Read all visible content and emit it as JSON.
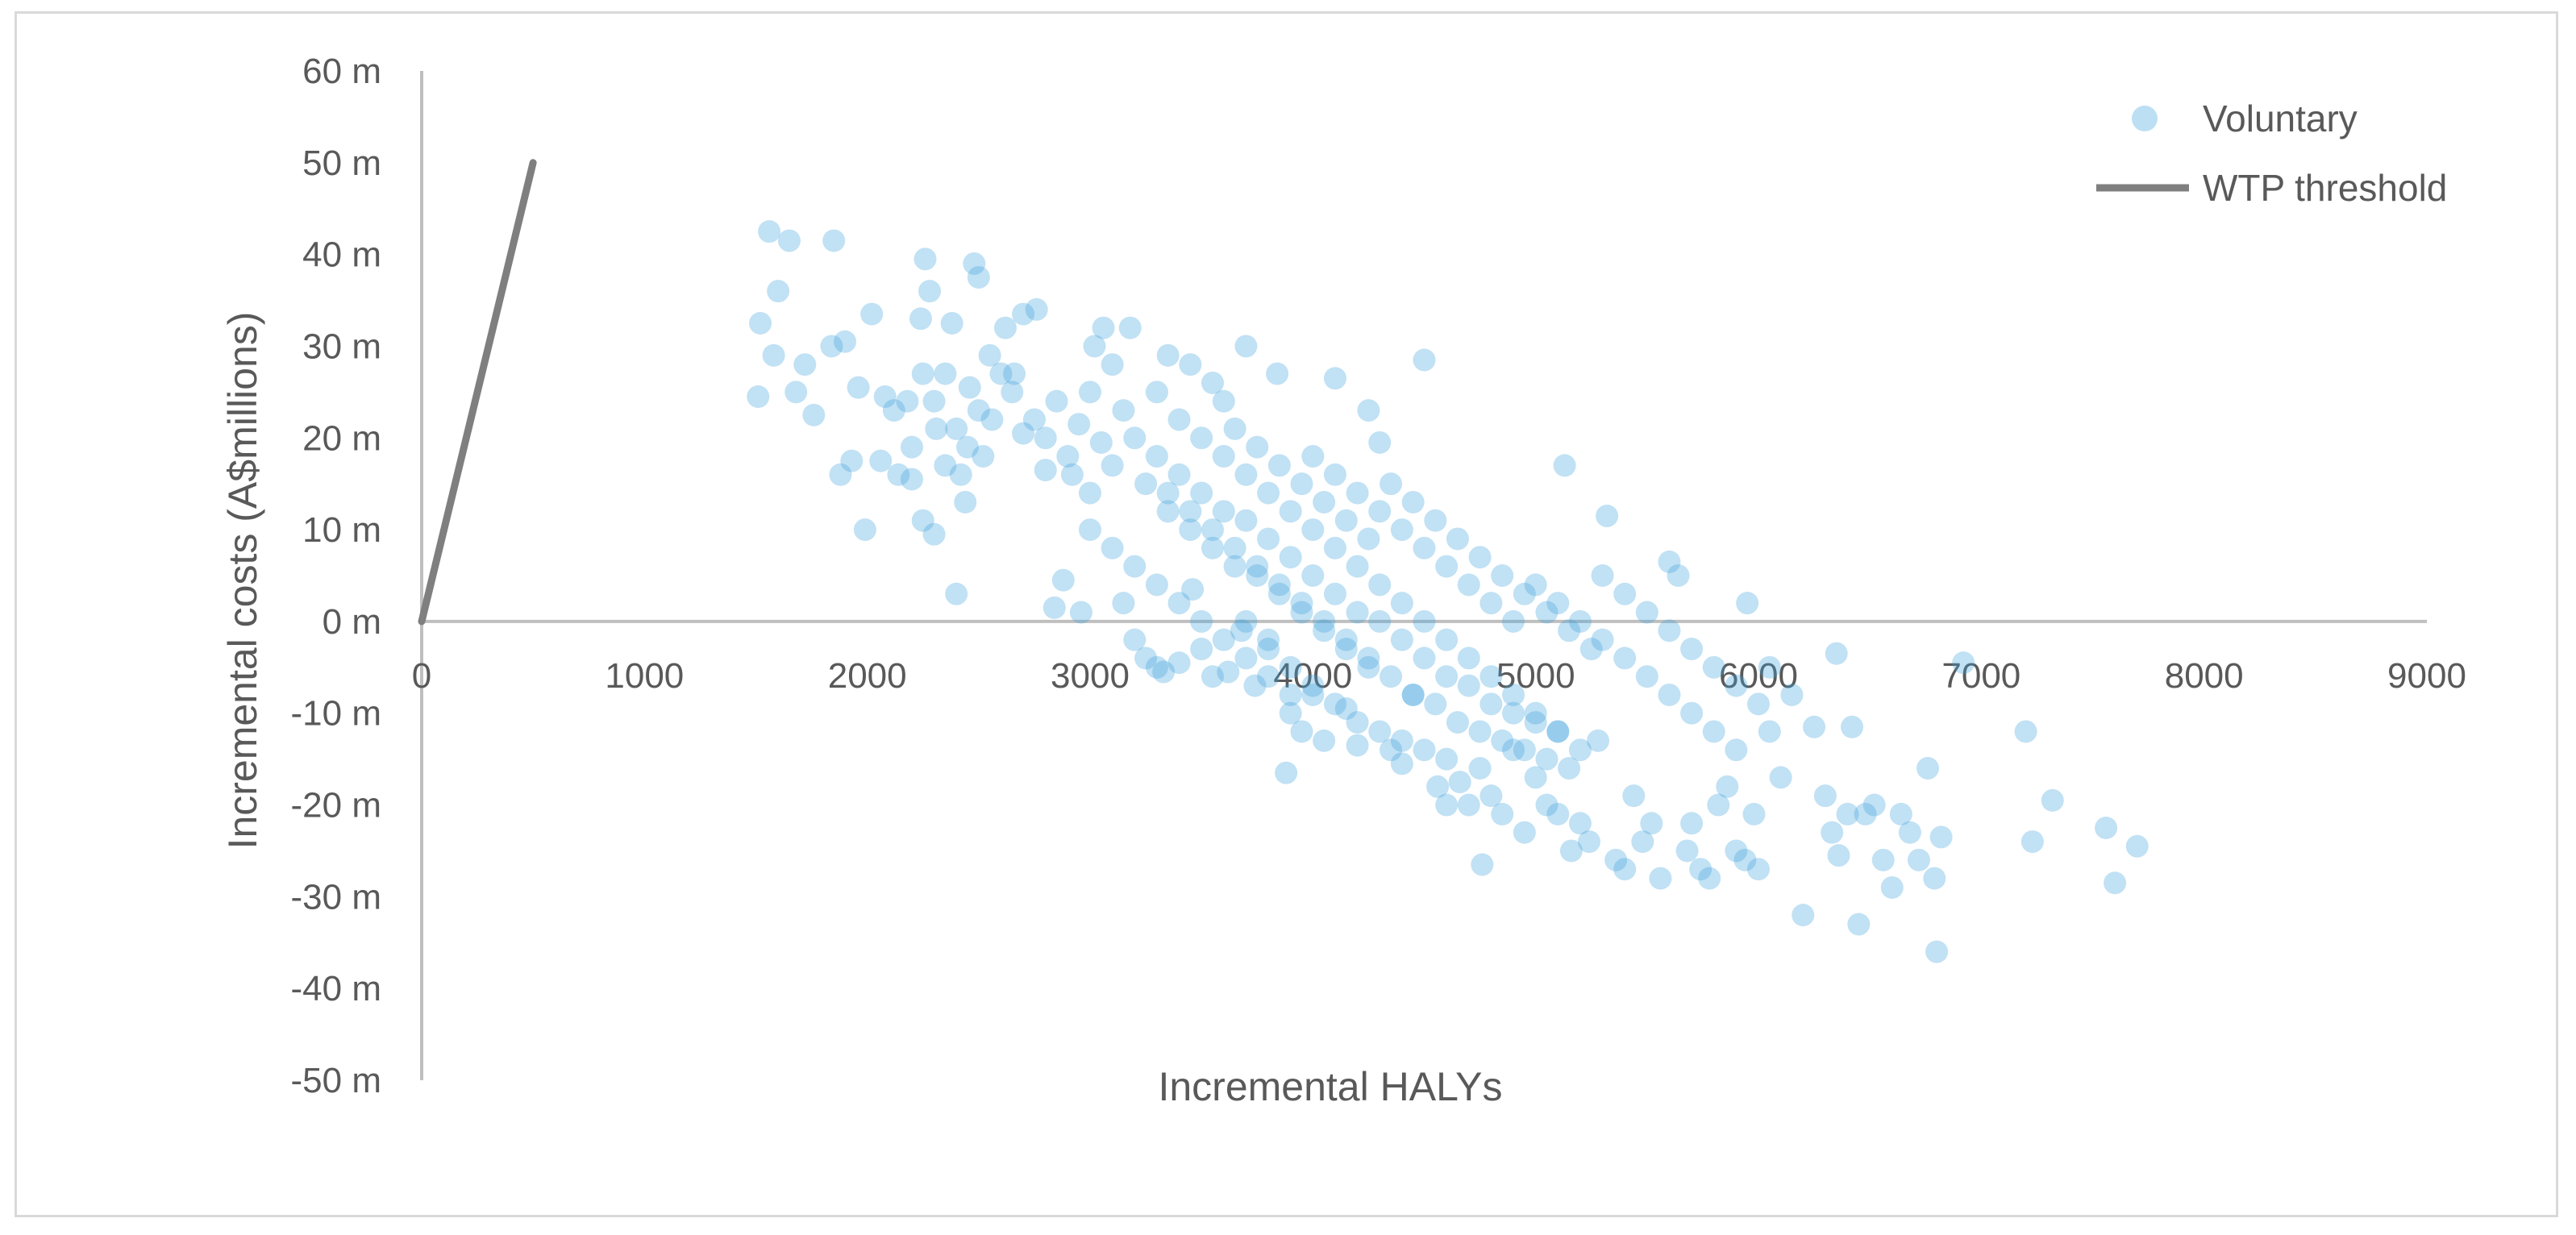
{
  "chart_data": {
    "type": "scatter",
    "title": "",
    "xlabel": "Incremental HALYs",
    "ylabel": "Incremental costs (A$millions)",
    "xlim": [
      0,
      9000
    ],
    "ylim": [
      -50,
      60
    ],
    "x_ticks": [
      "0",
      "1000",
      "2000",
      "3000",
      "4000",
      "5000",
      "6000",
      "7000",
      "8000",
      "9000"
    ],
    "y_ticks": [
      "60 m",
      "50 m",
      "40 m",
      "30 m",
      "20 m",
      "10 m",
      "0 m",
      "-10 m",
      "-20 m",
      "-30 m",
      "-40 m",
      "-50 m"
    ],
    "grid": false,
    "legend_position": "top-right",
    "series": [
      {
        "name": "Voluntary",
        "kind": "scatter",
        "color": "#3fa2dc",
        "points": [
          [
            1510,
            24.5
          ],
          [
            1520,
            32.5
          ],
          [
            1560,
            42.5
          ],
          [
            1580,
            29
          ],
          [
            1600,
            36
          ],
          [
            1650,
            41.5
          ],
          [
            1680,
            25
          ],
          [
            1720,
            28
          ],
          [
            1760,
            22.5
          ],
          [
            1840,
            30
          ],
          [
            1850,
            41.5
          ],
          [
            1880,
            16
          ],
          [
            1900,
            30.5
          ],
          [
            1930,
            17.5
          ],
          [
            1960,
            25.5
          ],
          [
            1990,
            10
          ],
          [
            2020,
            33.5
          ],
          [
            2060,
            17.5
          ],
          [
            2080,
            24.5
          ],
          [
            2120,
            23
          ],
          [
            2140,
            16
          ],
          [
            2180,
            24
          ],
          [
            2200,
            15.5
          ],
          [
            2240,
            33
          ],
          [
            2250,
            11
          ],
          [
            2260,
            39.5
          ],
          [
            2280,
            36
          ],
          [
            2300,
            9.5
          ],
          [
            2310,
            21
          ],
          [
            2350,
            27
          ],
          [
            2380,
            32.5
          ],
          [
            2400,
            3
          ],
          [
            2420,
            16
          ],
          [
            2440,
            13
          ],
          [
            2460,
            25.5
          ],
          [
            2480,
            39
          ],
          [
            2500,
            37.5
          ],
          [
            2520,
            18
          ],
          [
            2560,
            22
          ],
          [
            2620,
            32
          ],
          [
            2660,
            27
          ],
          [
            2700,
            33.5
          ],
          [
            2760,
            34
          ],
          [
            2800,
            20
          ],
          [
            2840,
            1.5
          ],
          [
            2880,
            4.5
          ],
          [
            2920,
            16
          ],
          [
            2960,
            1
          ],
          [
            3000,
            25
          ],
          [
            3020,
            30
          ],
          [
            3060,
            32
          ],
          [
            3100,
            28
          ],
          [
            3150,
            2
          ],
          [
            3180,
            32
          ],
          [
            3200,
            -2
          ],
          [
            3250,
            -4
          ],
          [
            3300,
            -5
          ],
          [
            3330,
            -5.5
          ],
          [
            3350,
            29
          ],
          [
            3400,
            -4.5
          ],
          [
            3460,
            3.5
          ],
          [
            3500,
            -3
          ],
          [
            3550,
            -6
          ],
          [
            3620,
            -5.5
          ],
          [
            3680,
            -1
          ],
          [
            3700,
            30
          ],
          [
            3740,
            -7
          ],
          [
            3800,
            -2
          ],
          [
            3840,
            27
          ],
          [
            3880,
            -16.5
          ],
          [
            3900,
            -10
          ],
          [
            3950,
            -12
          ],
          [
            4000,
            -8
          ],
          [
            4050,
            -13
          ],
          [
            4100,
            26.5
          ],
          [
            4150,
            -9.5
          ],
          [
            4200,
            -13.5
          ],
          [
            4250,
            23
          ],
          [
            4300,
            19.5
          ],
          [
            4350,
            -14
          ],
          [
            4400,
            -15.5
          ],
          [
            4450,
            -8
          ],
          [
            4500,
            28.5
          ],
          [
            4560,
            -18
          ],
          [
            4600,
            -20
          ],
          [
            4660,
            -17.5
          ],
          [
            4700,
            -20
          ],
          [
            4750,
            -16
          ],
          [
            4760,
            -26.5
          ],
          [
            4800,
            -19
          ],
          [
            4850,
            -21
          ],
          [
            4900,
            -14
          ],
          [
            4950,
            -23
          ],
          [
            5000,
            -17
          ],
          [
            5050,
            -20
          ],
          [
            5100,
            -21
          ],
          [
            5130,
            17
          ],
          [
            5160,
            -25
          ],
          [
            5200,
            -22
          ],
          [
            5240,
            -24
          ],
          [
            5280,
            -13
          ],
          [
            5320,
            11.5
          ],
          [
            5360,
            -26
          ],
          [
            5400,
            -27
          ],
          [
            5440,
            -19
          ],
          [
            5480,
            -24
          ],
          [
            5520,
            -22
          ],
          [
            5560,
            -28
          ],
          [
            5600,
            6.5
          ],
          [
            5640,
            5
          ],
          [
            5680,
            -25
          ],
          [
            5700,
            -22
          ],
          [
            5740,
            -27
          ],
          [
            5780,
            -28
          ],
          [
            5820,
            -20
          ],
          [
            5860,
            -18
          ],
          [
            5900,
            -25
          ],
          [
            5940,
            -26
          ],
          [
            5980,
            -21
          ],
          [
            6000,
            -27
          ],
          [
            6050,
            -12
          ],
          [
            6100,
            -17
          ],
          [
            6150,
            -8
          ],
          [
            6200,
            -32
          ],
          [
            6250,
            -11.5
          ],
          [
            6300,
            -19
          ],
          [
            6330,
            -23
          ],
          [
            6360,
            -25.5
          ],
          [
            6400,
            -21
          ],
          [
            6420,
            -11.5
          ],
          [
            6450,
            -33
          ],
          [
            6480,
            -21
          ],
          [
            6520,
            -20
          ],
          [
            6560,
            -26
          ],
          [
            6600,
            -29
          ],
          [
            6640,
            -21
          ],
          [
            6680,
            -23
          ],
          [
            6720,
            -26
          ],
          [
            6760,
            -16
          ],
          [
            6790,
            -28
          ],
          [
            6800,
            -36
          ],
          [
            6820,
            -23.5
          ],
          [
            6920,
            -4.5
          ],
          [
            7200,
            -12
          ],
          [
            7230,
            -24
          ],
          [
            7320,
            -19.5
          ],
          [
            7560,
            -22.5
          ],
          [
            7600,
            -28.5
          ],
          [
            7700,
            -24.5
          ],
          [
            6350,
            -3.5
          ],
          [
            2700,
            20.5
          ],
          [
            2750,
            22
          ],
          [
            2800,
            16.5
          ],
          [
            2850,
            24
          ],
          [
            2900,
            18
          ],
          [
            2950,
            21.5
          ],
          [
            3000,
            14
          ],
          [
            3050,
            19.5
          ],
          [
            3100,
            17
          ],
          [
            3150,
            23
          ],
          [
            3200,
            20
          ],
          [
            3250,
            15
          ],
          [
            3300,
            18
          ],
          [
            3350,
            12
          ],
          [
            3400,
            16
          ],
          [
            3450,
            10
          ],
          [
            3500,
            14
          ],
          [
            3550,
            8
          ],
          [
            3600,
            12
          ],
          [
            3650,
            6
          ],
          [
            3700,
            11
          ],
          [
            3750,
            5
          ],
          [
            3800,
            9
          ],
          [
            3850,
            3
          ],
          [
            3900,
            7
          ],
          [
            3950,
            1
          ],
          [
            4000,
            5
          ],
          [
            4050,
            -1
          ],
          [
            4100,
            3
          ],
          [
            4150,
            -3
          ],
          [
            4200,
            1
          ],
          [
            4250,
            -5
          ],
          [
            4300,
            0
          ],
          [
            4350,
            -6
          ],
          [
            4400,
            -2
          ],
          [
            4450,
            -8
          ],
          [
            4500,
            -4
          ],
          [
            4550,
            -9
          ],
          [
            4600,
            -6
          ],
          [
            4650,
            -11
          ],
          [
            4700,
            -7
          ],
          [
            4750,
            -12
          ],
          [
            4800,
            -9
          ],
          [
            4850,
            -13
          ],
          [
            4900,
            -10
          ],
          [
            4950,
            -14
          ],
          [
            5000,
            -11
          ],
          [
            5050,
            -15
          ],
          [
            5100,
            -12
          ],
          [
            5150,
            -16
          ],
          [
            3300,
            25
          ],
          [
            3400,
            22
          ],
          [
            3500,
            20
          ],
          [
            3600,
            18
          ],
          [
            3700,
            16
          ],
          [
            3800,
            14
          ],
          [
            3900,
            12
          ],
          [
            4000,
            10
          ],
          [
            4100,
            8
          ],
          [
            4200,
            6
          ],
          [
            4300,
            4
          ],
          [
            4400,
            2
          ],
          [
            4500,
            0
          ],
          [
            4600,
            -2
          ],
          [
            4700,
            -4
          ],
          [
            4800,
            -6
          ],
          [
            4900,
            -8
          ],
          [
            5000,
            -10
          ],
          [
            5100,
            -12
          ],
          [
            5200,
            -14
          ],
          [
            3000,
            10
          ],
          [
            3100,
            8
          ],
          [
            3200,
            6
          ],
          [
            3300,
            4
          ],
          [
            3400,
            2
          ],
          [
            3500,
            0
          ],
          [
            3600,
            -2
          ],
          [
            3700,
            -4
          ],
          [
            3800,
            -6
          ],
          [
            3900,
            -8
          ],
          [
            4000,
            18
          ],
          [
            4100,
            16
          ],
          [
            4200,
            14
          ],
          [
            4300,
            12
          ],
          [
            4400,
            10
          ],
          [
            4500,
            8
          ],
          [
            4600,
            6
          ],
          [
            4700,
            4
          ],
          [
            4800,
            2
          ],
          [
            4900,
            0
          ],
          [
            5000,
            4
          ],
          [
            5100,
            2
          ],
          [
            5200,
            0
          ],
          [
            5300,
            -2
          ],
          [
            5400,
            -4
          ],
          [
            5500,
            -6
          ],
          [
            5600,
            -8
          ],
          [
            5700,
            -10
          ],
          [
            5800,
            -12
          ],
          [
            5900,
            -14
          ],
          [
            5300,
            5
          ],
          [
            5400,
            3
          ],
          [
            5500,
            1
          ],
          [
            5600,
            -1
          ],
          [
            5700,
            -3
          ],
          [
            5800,
            -5
          ],
          [
            5900,
            -7
          ],
          [
            6000,
            -9
          ],
          [
            6050,
            -5
          ],
          [
            5950,
            2
          ],
          [
            2600,
            27
          ],
          [
            2650,
            25
          ],
          [
            2550,
            29
          ],
          [
            2500,
            23
          ],
          [
            2450,
            19
          ],
          [
            2400,
            21
          ],
          [
            2350,
            17
          ],
          [
            2300,
            24
          ],
          [
            2250,
            27
          ],
          [
            2200,
            19
          ],
          [
            3600,
            24
          ],
          [
            3650,
            21
          ],
          [
            3550,
            26
          ],
          [
            3450,
            28
          ],
          [
            3750,
            19
          ],
          [
            3850,
            17
          ],
          [
            3950,
            15
          ],
          [
            4050,
            13
          ],
          [
            4150,
            11
          ],
          [
            4250,
            9
          ],
          [
            3700,
            0
          ],
          [
            3800,
            -3
          ],
          [
            3900,
            -5
          ],
          [
            4000,
            -7
          ],
          [
            4100,
            -9
          ],
          [
            4200,
            -11
          ],
          [
            4300,
            -12
          ],
          [
            4400,
            -13
          ],
          [
            4500,
            -14
          ],
          [
            4600,
            -15
          ],
          [
            4350,
            15
          ],
          [
            4450,
            13
          ],
          [
            4550,
            11
          ],
          [
            4650,
            9
          ],
          [
            4750,
            7
          ],
          [
            4850,
            5
          ],
          [
            4950,
            3
          ],
          [
            5050,
            1
          ],
          [
            5150,
            -1
          ],
          [
            5250,
            -3
          ],
          [
            3350,
            14
          ],
          [
            3450,
            12
          ],
          [
            3550,
            10
          ],
          [
            3650,
            8
          ],
          [
            3750,
            6
          ],
          [
            3850,
            4
          ],
          [
            3950,
            2
          ],
          [
            4050,
            0
          ],
          [
            4150,
            -2
          ],
          [
            4250,
            -4
          ]
        ]
      },
      {
        "name": "WTP threshold",
        "kind": "line",
        "color": "#7f7f7f",
        "points": [
          [
            0,
            0
          ],
          [
            500,
            50
          ]
        ]
      }
    ]
  }
}
